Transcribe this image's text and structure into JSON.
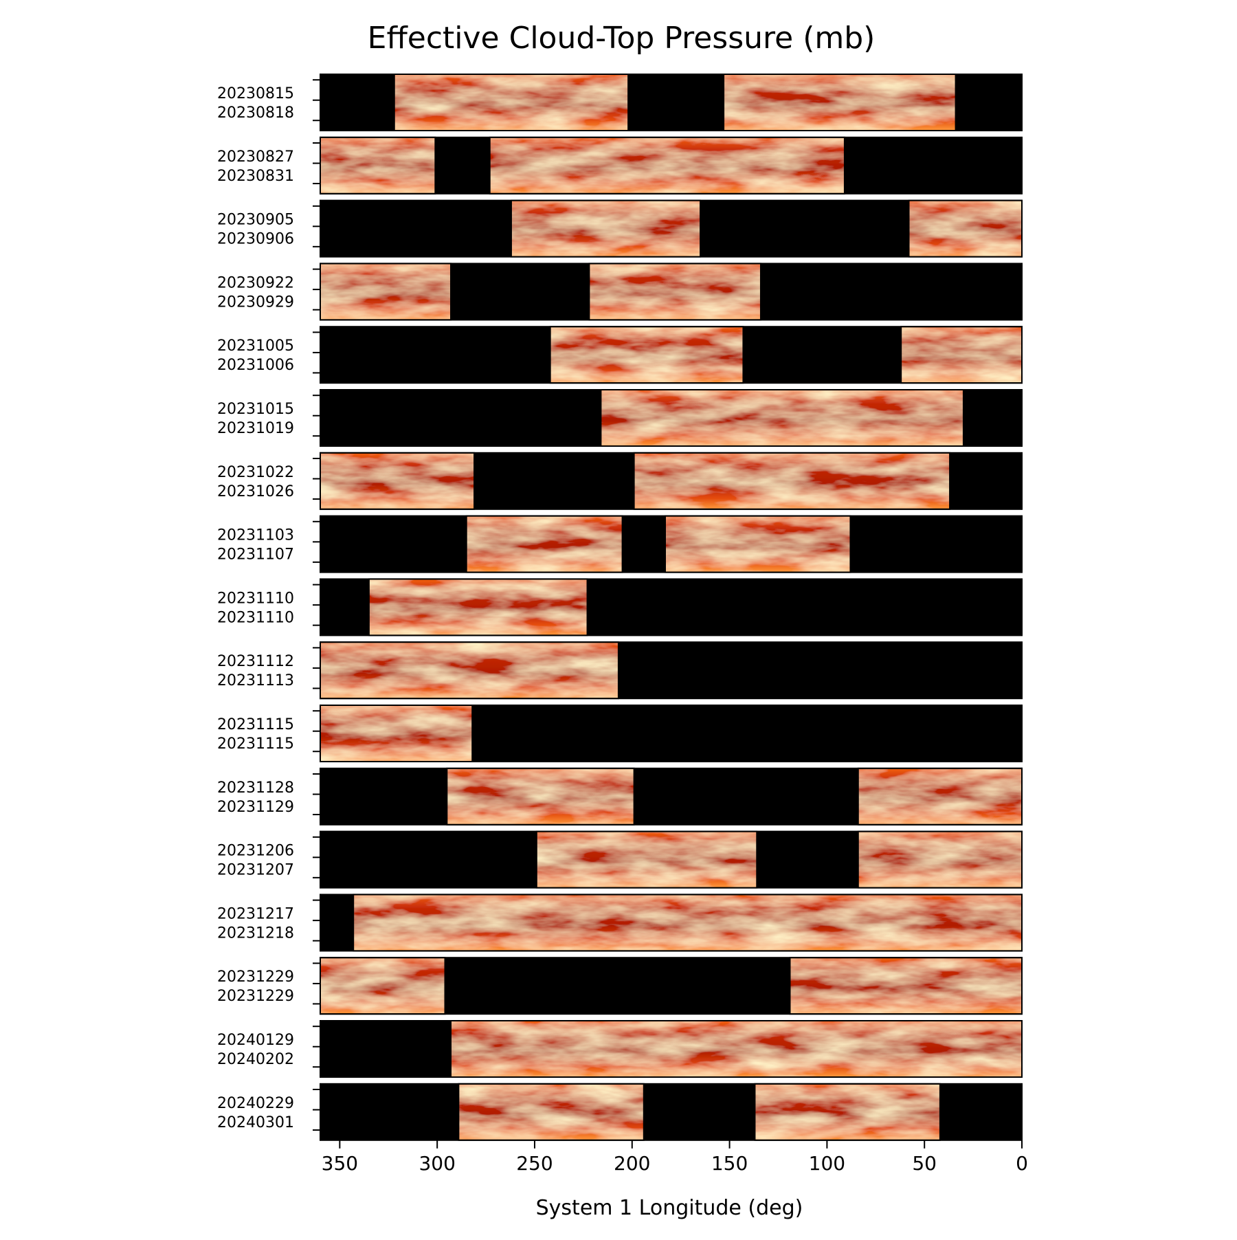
{
  "chart_data": {
    "type": "heatmap",
    "title": "Effective Cloud-Top Pressure (mb)",
    "xlabel": "System 1 Longitude (deg)",
    "ylabel": "",
    "xlim": [
      360,
      0
    ],
    "x_inverted": true,
    "x_ticks": [
      350,
      300,
      250,
      200,
      150,
      100,
      50,
      0
    ],
    "grid": false,
    "legend": "none",
    "colormap": "gist_heat-like: dark red (high) to orange to white (low)",
    "background_no_data": "#000000",
    "panels": [
      {
        "dates": [
          "20230815",
          "20230818"
        ],
        "coverage": [
          [
            322,
            202
          ],
          [
            153,
            34
          ]
        ]
      },
      {
        "dates": [
          "20230827",
          "20230831"
        ],
        "coverage": [
          [
            360,
            301
          ],
          [
            273,
            91
          ]
        ]
      },
      {
        "dates": [
          "20230905",
          "20230906"
        ],
        "coverage": [
          [
            262,
            165
          ],
          [
            58,
            0
          ]
        ]
      },
      {
        "dates": [
          "20230922",
          "20230929"
        ],
        "coverage": [
          [
            360,
            293
          ],
          [
            222,
            134
          ]
        ]
      },
      {
        "dates": [
          "20231005",
          "20231006"
        ],
        "coverage": [
          [
            242,
            143
          ],
          [
            62,
            0
          ]
        ]
      },
      {
        "dates": [
          "20231015",
          "20231019"
        ],
        "coverage": [
          [
            216,
            30
          ]
        ]
      },
      {
        "dates": [
          "20231022",
          "20231026"
        ],
        "coverage": [
          [
            360,
            281
          ],
          [
            199,
            37
          ]
        ]
      },
      {
        "dates": [
          "20231103",
          "20231107"
        ],
        "coverage": [
          [
            285,
            205
          ],
          [
            183,
            88
          ]
        ]
      },
      {
        "dates": [
          "20231110",
          "20231110"
        ],
        "coverage": [
          [
            335,
            223
          ]
        ]
      },
      {
        "dates": [
          "20231112",
          "20231113"
        ],
        "coverage": [
          [
            360,
            207
          ]
        ]
      },
      {
        "dates": [
          "20231115",
          "20231115"
        ],
        "coverage": [
          [
            360,
            282
          ]
        ]
      },
      {
        "dates": [
          "20231128",
          "20231129"
        ],
        "coverage": [
          [
            295,
            199
          ],
          [
            84,
            0
          ]
        ]
      },
      {
        "dates": [
          "20231206",
          "20231207"
        ],
        "coverage": [
          [
            249,
            136
          ],
          [
            84,
            0
          ]
        ]
      },
      {
        "dates": [
          "20231217",
          "20231218"
        ],
        "coverage": [
          [
            343,
            0
          ]
        ]
      },
      {
        "dates": [
          "20231229",
          "20231229"
        ],
        "coverage": [
          [
            360,
            296
          ],
          [
            119,
            0
          ]
        ]
      },
      {
        "dates": [
          "20240129",
          "20240202"
        ],
        "coverage": [
          [
            293,
            0
          ]
        ]
      },
      {
        "dates": [
          "20240229",
          "20240301"
        ],
        "coverage": [
          [
            289,
            194
          ],
          [
            137,
            42
          ]
        ]
      }
    ]
  }
}
